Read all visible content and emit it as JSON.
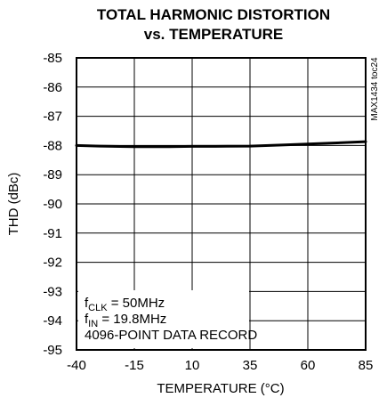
{
  "chart_data": {
    "type": "line",
    "title_line1": "TOTAL HARMONIC DISTORTION",
    "title_line2": "vs. TEMPERATURE",
    "xlabel": "TEMPERATURE (°C)",
    "ylabel": "THD (dBc)",
    "xlim": [
      -40,
      85
    ],
    "ylim": [
      -95,
      -85
    ],
    "x_ticks": [
      -40,
      -15,
      10,
      35,
      60,
      85
    ],
    "x_tick_labels": [
      "-40",
      "-15",
      "10",
      "35",
      "60",
      "85"
    ],
    "y_ticks": [
      -85,
      -86,
      -87,
      -88,
      -89,
      -90,
      -91,
      -92,
      -93,
      -94,
      -95
    ],
    "y_tick_labels": [
      "-85",
      "-86",
      "-87",
      "-88",
      "-89",
      "-90",
      "-91",
      "-92",
      "-93",
      "-94",
      "-95"
    ],
    "grid": true,
    "series": [
      {
        "x": [
          -40,
          -30,
          -15,
          0,
          10,
          20,
          35,
          50,
          60,
          70,
          85
        ],
        "y": [
          -88.0,
          -88.02,
          -88.04,
          -88.04,
          -88.03,
          -88.03,
          -88.02,
          -87.98,
          -87.95,
          -87.92,
          -87.87
        ]
      }
    ],
    "annotation": {
      "line1_main": "f",
      "line1_sub": "CLK",
      "line1_rest": " = 50MHz",
      "line2_main": "f",
      "line2_sub": "IN",
      "line2_rest": " = 19.8MHz",
      "line3": "4096-POINT DATA RECORD"
    },
    "figure_code": "MAX1434 toc24"
  }
}
